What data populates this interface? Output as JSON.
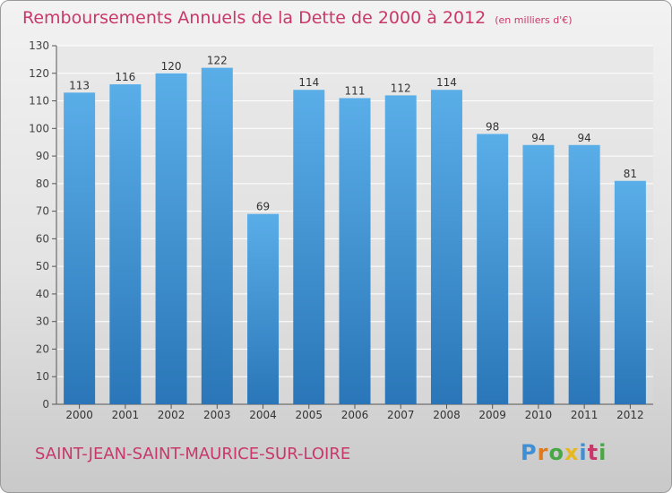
{
  "title": "Remboursements Annuels de la Dette de 2000 à 2012",
  "unit_note": "(en milliers d'€)",
  "town": "SAINT-JEAN-SAINT-MAURICE-SUR-LOIRE",
  "brand": "Proxiti",
  "brand_letters": [
    {
      "ch": "P",
      "color": "#3e8fd6"
    },
    {
      "ch": "r",
      "color": "#e07a1f"
    },
    {
      "ch": "o",
      "color": "#49a845"
    },
    {
      "ch": "x",
      "color": "#e6b81f"
    },
    {
      "ch": "i",
      "color": "#3e8fd6"
    },
    {
      "ch": "t",
      "color": "#c8386a"
    },
    {
      "ch": "i",
      "color": "#49a845"
    }
  ],
  "colors": {
    "title": "#c8386a",
    "bar_top": "#5aaee8",
    "bar_bottom": "#2a76b8",
    "grid": "#ffffff",
    "axis": "#555555"
  },
  "chart_data": {
    "type": "bar",
    "title": "Remboursements Annuels de la Dette de 2000 à 2012",
    "xlabel": "",
    "ylabel": "",
    "categories": [
      "2000",
      "2001",
      "2002",
      "2003",
      "2004",
      "2005",
      "2006",
      "2007",
      "2008",
      "2009",
      "2010",
      "2011",
      "2012"
    ],
    "values": [
      113,
      116,
      120,
      122,
      69,
      114,
      111,
      112,
      114,
      98,
      94,
      94,
      81
    ],
    "ylim": [
      0,
      130
    ],
    "yticks": [
      0,
      10,
      20,
      30,
      40,
      50,
      60,
      70,
      80,
      90,
      100,
      110,
      120,
      130
    ],
    "grid": true,
    "legend": "none"
  }
}
